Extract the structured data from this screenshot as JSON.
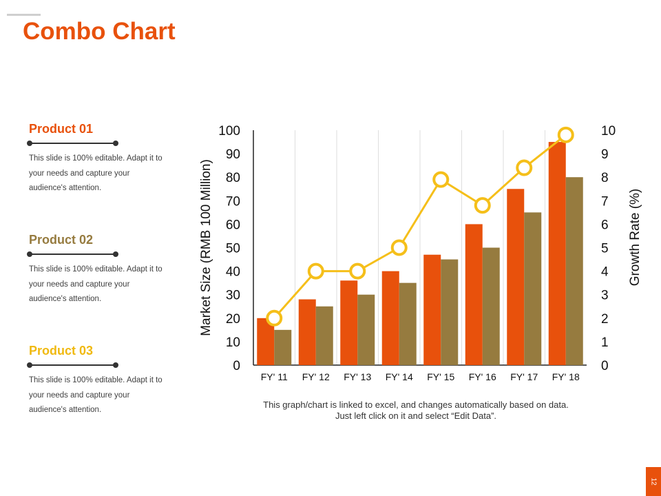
{
  "title": "Combo Chart",
  "products": [
    {
      "name": "Product 01",
      "color": "#e8510c",
      "text": "This slide is 100% editable. Adapt it to your needs and capture your audience's attention."
    },
    {
      "name": "Product 02",
      "color": "#967b3f",
      "text": "This slide is 100% editable. Adapt it to your needs and capture your audience's attention."
    },
    {
      "name": "Product 03",
      "color": "#f0b910",
      "text": "This slide is 100% editable. Adapt it to your needs and capture your audience's attention."
    }
  ],
  "caption": "This graph/chart is linked to excel, and changes automatically based on data. Just left click on it and select “Edit Data”.",
  "page_number": "12",
  "colors": {
    "accent": "#e8510c",
    "series2": "#967b3f",
    "line": "#f5bf1a"
  },
  "chart_data": {
    "type": "bar",
    "title": "",
    "categories": [
      "FY' 11",
      "FY' 12",
      "FY' 13",
      "FY' 14",
      "FY' 15",
      "FY' 16",
      "FY' 17",
      "FY' 18"
    ],
    "series": [
      {
        "name": "Product 01",
        "type": "bar",
        "axis": "left",
        "color": "#e8510c",
        "values": [
          20,
          28,
          36,
          40,
          47,
          60,
          75,
          95
        ]
      },
      {
        "name": "Product 02",
        "type": "bar",
        "axis": "left",
        "color": "#967b3f",
        "values": [
          15,
          25,
          30,
          35,
          45,
          50,
          65,
          80
        ]
      },
      {
        "name": "Product 03",
        "type": "line",
        "axis": "right",
        "color": "#f5bf1a",
        "values": [
          2,
          4,
          4,
          5,
          7.9,
          6.8,
          8.4,
          9.8
        ]
      }
    ],
    "ylabel": "Market Size (RMB 100 Million)",
    "y2label": "Growth Rate (%)",
    "ylim": [
      0,
      100
    ],
    "y2lim": [
      0,
      10
    ],
    "yticks": [
      "0",
      "10",
      "20",
      "30",
      "40",
      "50",
      "60",
      "70",
      "80",
      "90",
      "100"
    ],
    "y2ticks": [
      "0",
      "1",
      "2",
      "3",
      "4",
      "5",
      "6",
      "7",
      "8",
      "9",
      "10"
    ],
    "grid": "vertical"
  }
}
